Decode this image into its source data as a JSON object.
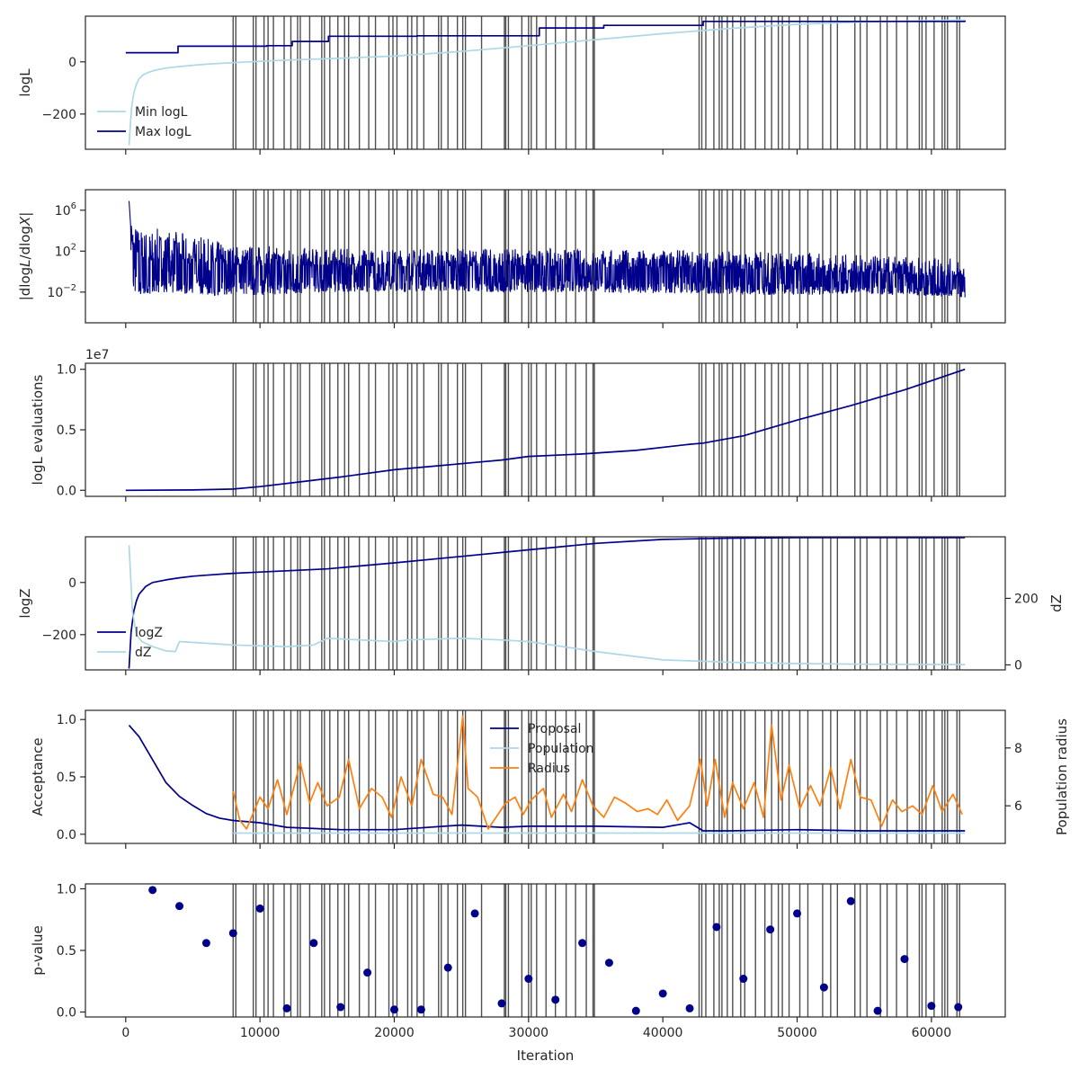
{
  "colors": {
    "navy": "#00008b",
    "lightblue": "#add8e6",
    "orange": "#ff7f0e",
    "vline": "#3d3d3d"
  },
  "xaxis": {
    "label": "Iteration",
    "ticks": [
      0,
      10000,
      20000,
      30000,
      40000,
      50000,
      60000
    ],
    "tick_labels": [
      "0",
      "10000",
      "20000",
      "30000",
      "40000",
      "50000",
      "60000"
    ],
    "range": [
      -3000,
      65500
    ]
  },
  "insertion_iterations": [
    8000,
    8200,
    9500,
    9700,
    10300,
    10600,
    11000,
    11800,
    12300,
    12800,
    13000,
    13700,
    14600,
    14800,
    15200,
    15800,
    16300,
    16600,
    17400,
    18100,
    18600,
    19600,
    19900,
    20200,
    21000,
    21300,
    21700,
    22200,
    23300,
    23500,
    24000,
    24700,
    25100,
    25300,
    26500,
    28200,
    28300,
    28500,
    29500,
    30000,
    30200,
    30600,
    31300,
    32000,
    32800,
    33500,
    34300,
    34800,
    34900,
    42700,
    42900,
    43200,
    43800,
    44200,
    44400,
    44800,
    45200,
    45800,
    46100,
    46900,
    47600,
    48100,
    48600,
    48900,
    49400,
    50200,
    50800,
    51900,
    52500,
    53000,
    54300,
    54700,
    55200,
    56200,
    56700,
    57400,
    58200,
    59100,
    59300,
    59600,
    60200,
    60800,
    61000,
    61200,
    61900,
    62100
  ],
  "chart_data": [
    {
      "type": "line",
      "id": "logl",
      "ylabel": "logL",
      "ylim": [
        -335,
        175
      ],
      "yticks": [
        -200,
        0
      ],
      "ytick_labels": [
        "−200",
        "0"
      ],
      "legend": {
        "placement": "lower-left",
        "entries": [
          "Min logL",
          "Max logL"
        ]
      },
      "series": [
        {
          "name": "Min logL",
          "color": "lightblue",
          "x": [
            250,
            350,
            450,
            600,
            800,
            1000,
            1300,
            1700,
            2200,
            3000,
            4000,
            5000,
            6000,
            8000,
            10000,
            12000,
            15000,
            20000,
            25000,
            30000,
            35000,
            40000,
            45000,
            50000,
            55000,
            60000,
            62500
          ],
          "y": [
            -320,
            -240,
            -170,
            -120,
            -85,
            -65,
            -50,
            -40,
            -32,
            -24,
            -18,
            -13,
            -9,
            -3,
            2,
            7,
            12,
            22,
            40,
            62,
            85,
            108,
            128,
            144,
            153,
            158,
            160
          ]
        },
        {
          "name": "Max logL",
          "color": "navy",
          "step": true,
          "x": [
            0,
            3800,
            3900,
            10300,
            10500,
            12200,
            12400,
            15000,
            15100,
            21600,
            21700,
            30600,
            30800,
            35500,
            35600,
            42000,
            43000,
            62500
          ],
          "y": [
            35,
            35,
            60,
            60,
            62,
            62,
            78,
            78,
            98,
            98,
            100,
            100,
            130,
            130,
            140,
            140,
            155,
            158
          ]
        }
      ]
    },
    {
      "type": "line",
      "id": "dlogl",
      "ylabel": "|dlogL/dlogX|",
      "yscale": "log",
      "ylim": [
        1e-05,
        100000000.0
      ],
      "yticks": [
        0.01,
        100,
        1000000
      ],
      "ytick_labels": [
        "10⁻²",
        "10²",
        "10⁶"
      ],
      "series": [
        {
          "name": "|dlogL/dlogX|",
          "color": "navy",
          "x": [
            0,
            250,
            500,
            1000,
            1500,
            3000,
            5000,
            8000,
            15000,
            25000,
            40000,
            50000,
            55000,
            62500
          ],
          "center": [
            0,
            8000000,
            200,
            40,
            15,
            10,
            6,
            4,
            3,
            3.5,
            2.5,
            1.5,
            0.7,
            0.3
          ],
          "spread_low": [
            1,
            1,
            8,
            8,
            7,
            6,
            6,
            6,
            5,
            5,
            5,
            5,
            4,
            4
          ],
          "spread_high": [
            1,
            1,
            8,
            8,
            9,
            9,
            8,
            6,
            5,
            5,
            5,
            5,
            5,
            5
          ]
        }
      ]
    },
    {
      "type": "line",
      "id": "evals",
      "ylabel": "logL evaluations",
      "offset_text": "1e7",
      "ylim": [
        -0.05,
        1.05
      ],
      "yticks": [
        0.0,
        0.5,
        1.0
      ],
      "ytick_labels": [
        "0.0",
        "0.5",
        "1.0"
      ],
      "series": [
        {
          "name": "logL evaluations",
          "color": "navy",
          "x": [
            0,
            5000,
            8000,
            10000,
            13000,
            16000,
            20000,
            23000,
            26000,
            28000,
            30000,
            34000,
            38000,
            42000,
            43000,
            46000,
            50000,
            54000,
            58000,
            62500
          ],
          "y": [
            0,
            0.003,
            0.01,
            0.03,
            0.07,
            0.11,
            0.17,
            0.2,
            0.23,
            0.25,
            0.28,
            0.3,
            0.33,
            0.38,
            0.39,
            0.45,
            0.58,
            0.7,
            0.83,
            1.0
          ]
        }
      ]
    },
    {
      "type": "line",
      "id": "logz",
      "ylabel": "logZ",
      "ylabel_right": "dZ",
      "ylim": [
        -335,
        175
      ],
      "ylim_right": [
        -15,
        385
      ],
      "yticks": [
        -200,
        0
      ],
      "ytick_labels": [
        "−200",
        "0"
      ],
      "yticks_right": [
        0,
        200
      ],
      "ytick_labels_right": [
        "0",
        "200"
      ],
      "legend": {
        "placement": "lower-left",
        "entries": [
          "logZ",
          "dZ"
        ]
      },
      "series": [
        {
          "name": "logZ",
          "color": "navy",
          "axis": "left",
          "x": [
            250,
            400,
            600,
            800,
            1000,
            1500,
            2000,
            3000,
            4000,
            5000,
            6000,
            8000,
            10000,
            15000,
            20000,
            25000,
            30000,
            35000,
            40000,
            45000,
            50000,
            55000,
            62500
          ],
          "y": [
            -330,
            -190,
            -110,
            -70,
            -45,
            -15,
            0,
            10,
            18,
            24,
            28,
            35,
            40,
            52,
            75,
            100,
            125,
            150,
            165,
            170,
            172,
            172,
            172
          ]
        },
        {
          "name": "dZ",
          "color": "lightblue",
          "axis": "right",
          "x": [
            250,
            500,
            800,
            1200,
            2000,
            3000,
            3700,
            4000,
            8000,
            12000,
            14000,
            15000,
            20000,
            21000,
            25000,
            28000,
            30000,
            35000,
            40000,
            45000,
            50000,
            55000,
            62500
          ],
          "y": [
            360,
            160,
            90,
            70,
            55,
            42,
            40,
            70,
            60,
            55,
            60,
            80,
            70,
            75,
            80,
            75,
            70,
            40,
            15,
            8,
            4,
            2,
            1
          ]
        }
      ]
    },
    {
      "type": "line",
      "id": "accept",
      "ylabel": "Acceptance",
      "ylabel_right": "Population radius",
      "ylim": [
        -0.08,
        1.08
      ],
      "ylim_right": [
        4.7,
        9.3
      ],
      "yticks": [
        0.0,
        0.5,
        1.0
      ],
      "ytick_labels": [
        "0.0",
        "0.5",
        "1.0"
      ],
      "yticks_right": [
        6,
        8
      ],
      "ytick_labels_right": [
        "6",
        "8"
      ],
      "legend": {
        "placement": "upper-center",
        "entries": [
          "Proposal",
          "Population",
          "Radius"
        ]
      },
      "series": [
        {
          "name": "Proposal",
          "color": "navy",
          "axis": "left",
          "x": [
            250,
            1000,
            2000,
            3000,
            4000,
            5000,
            6000,
            7000,
            8000,
            10000,
            12000,
            14000,
            16000,
            20000,
            25000,
            28000,
            30000,
            35000,
            40000,
            42000,
            43000,
            45000,
            50000,
            55000,
            60000,
            62500
          ],
          "y": [
            0.95,
            0.85,
            0.65,
            0.45,
            0.33,
            0.25,
            0.18,
            0.14,
            0.12,
            0.1,
            0.06,
            0.05,
            0.04,
            0.04,
            0.08,
            0.06,
            0.07,
            0.07,
            0.06,
            0.1,
            0.03,
            0.03,
            0.04,
            0.03,
            0.03,
            0.03
          ]
        },
        {
          "name": "Population",
          "color": "lightblue",
          "axis": "left",
          "x": [
            8000,
            62500
          ],
          "y": [
            0.01,
            0.01
          ]
        },
        {
          "name": "Radius",
          "color": "orange",
          "axis": "right",
          "x": [
            8000,
            8500,
            9000,
            10000,
            10600,
            11300,
            12000,
            13000,
            13700,
            14300,
            15000,
            15900,
            16600,
            17400,
            18300,
            19100,
            19800,
            20500,
            21300,
            22000,
            22900,
            23600,
            24300,
            25100,
            25500,
            26200,
            27000,
            28300,
            29000,
            29600,
            30200,
            31100,
            31700,
            32600,
            33200,
            34000,
            34800,
            35600,
            36400,
            37200,
            38100,
            38900,
            39600,
            40300,
            41100,
            42000,
            42800,
            43300,
            43900,
            44600,
            45200,
            46000,
            46800,
            47500,
            48100,
            48800,
            49400,
            50200,
            51000,
            51700,
            52500,
            53200,
            54000,
            54700,
            55500,
            56300,
            57100,
            57800,
            58600,
            59300,
            60100,
            60800,
            61600,
            62300
          ],
          "y": [
            6.5,
            5.5,
            5.2,
            6.3,
            5.9,
            6.9,
            5.7,
            7.5,
            6.1,
            6.8,
            6.0,
            6.3,
            7.6,
            5.9,
            6.6,
            6.3,
            5.6,
            7.0,
            6.0,
            7.6,
            6.4,
            6.3,
            5.7,
            9.1,
            6.6,
            6.3,
            5.2,
            6.1,
            6.3,
            5.7,
            6.2,
            6.6,
            5.6,
            6.4,
            5.8,
            6.9,
            6.0,
            5.6,
            6.3,
            6.1,
            5.8,
            5.9,
            5.7,
            6.2,
            5.5,
            6.0,
            7.6,
            6.0,
            7.6,
            5.6,
            6.8,
            5.9,
            6.8,
            5.6,
            8.8,
            6.2,
            7.4,
            5.9,
            6.7,
            6.0,
            7.3,
            5.9,
            7.6,
            6.3,
            6.2,
            5.3,
            6.2,
            5.8,
            6.0,
            5.7,
            6.7,
            5.8,
            6.4,
            5.7
          ]
        }
      ]
    },
    {
      "type": "scatter",
      "id": "pvalue",
      "ylabel": "p-value",
      "ylim": [
        -0.04,
        1.04
      ],
      "yticks": [
        0.0,
        0.5,
        1.0
      ],
      "ytick_labels": [
        "0.0",
        "0.5",
        "1.0"
      ],
      "series": [
        {
          "name": "p-value",
          "color": "navy",
          "x": [
            2000,
            4000,
            6000,
            8000,
            10000,
            12000,
            14000,
            16000,
            18000,
            20000,
            22000,
            24000,
            26000,
            28000,
            30000,
            32000,
            34000,
            36000,
            38000,
            40000,
            42000,
            44000,
            46000,
            48000,
            50000,
            52000,
            54000,
            56000,
            58000,
            60000,
            62000
          ],
          "y": [
            0.99,
            0.86,
            0.56,
            0.64,
            0.84,
            0.03,
            0.56,
            0.04,
            0.32,
            0.02,
            0.02,
            0.36,
            0.8,
            0.07,
            0.27,
            0.1,
            0.56,
            0.4,
            0.01,
            0.15,
            0.03,
            0.69,
            0.27,
            0.67,
            0.8,
            0.2,
            0.9,
            0.01,
            0.43,
            0.05,
            0.04
          ]
        }
      ]
    }
  ]
}
